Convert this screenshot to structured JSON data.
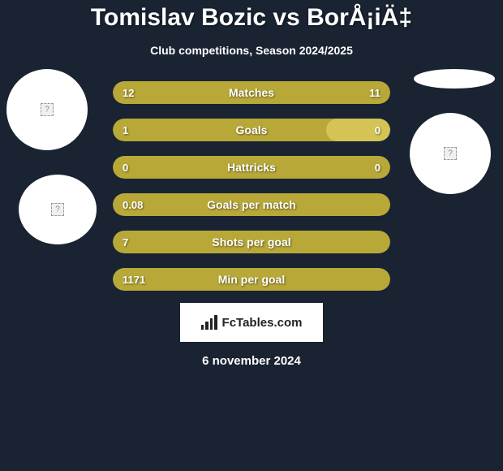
{
  "header": {
    "title": "Tomislav Bozic vs BorÅ¡iÄ‡",
    "subtitle": "Club competitions, Season 2024/2025"
  },
  "colors": {
    "background": "#1a2332",
    "bar_primary": "#b8a838",
    "bar_secondary": "#d4c456",
    "text": "#ffffff",
    "circle_bg": "#ffffff",
    "logo_bg": "#ffffff",
    "logo_text": "#222222"
  },
  "stats": [
    {
      "label": "Matches",
      "left_value": "12",
      "right_value": "11",
      "left_pct": 52,
      "right_pct": 48,
      "right_color": "#b8a838"
    },
    {
      "label": "Goals",
      "left_value": "1",
      "right_value": "0",
      "left_pct": 77,
      "right_pct": 23,
      "right_color": "#d4c456"
    },
    {
      "label": "Hattricks",
      "left_value": "0",
      "right_value": "0",
      "left_pct": 50,
      "right_pct": 50,
      "right_color": "#b8a838"
    },
    {
      "label": "Goals per match",
      "left_value": "0.08",
      "right_value": "",
      "left_pct": 100,
      "right_pct": 0,
      "right_color": "#b8a838"
    },
    {
      "label": "Shots per goal",
      "left_value": "7",
      "right_value": "",
      "left_pct": 100,
      "right_pct": 0,
      "right_color": "#b8a838"
    },
    {
      "label": "Min per goal",
      "left_value": "1171",
      "right_value": "",
      "left_pct": 100,
      "right_pct": 0,
      "right_color": "#b8a838"
    }
  ],
  "logo": {
    "text": "FcTables.com"
  },
  "footer": {
    "date": "6 november 2024"
  }
}
